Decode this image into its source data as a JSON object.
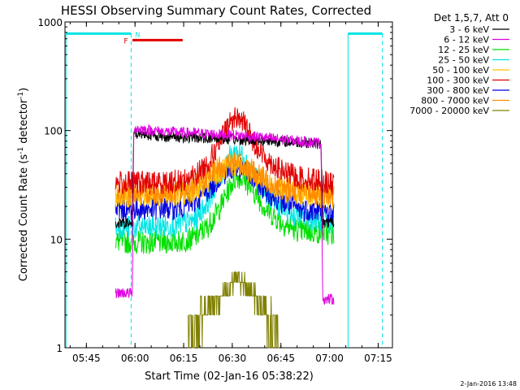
{
  "chart_data": {
    "type": "line",
    "title": "HESSI Observing Summary Count Rates, Corrected",
    "xlabel": "Start Time (02-Jan-16 05:38:22)",
    "ylabel": "Corrected Count Rate (s⁻¹ detector⁻¹)",
    "ylabel_parts": [
      "Corrected Count Rate (s",
      "-1",
      " detector",
      "-1",
      ")"
    ],
    "yscale": "log",
    "ylim": [
      1,
      1000
    ],
    "xlim_minutes_after_0538": [
      0,
      101
    ],
    "x_unit": "minutes after 05:38:22",
    "xticks": [
      {
        "label": "05:45",
        "min": 6.6
      },
      {
        "label": "06:00",
        "min": 21.6
      },
      {
        "label": "06:15",
        "min": 36.6
      },
      {
        "label": "06:30",
        "min": 51.6
      },
      {
        "label": "06:45",
        "min": 66.6
      },
      {
        "label": "07:00",
        "min": 81.6
      },
      {
        "label": "07:15",
        "min": 96.6
      }
    ],
    "yticks": [
      {
        "label": "1",
        "value": 1
      },
      {
        "label": "10",
        "value": 10
      },
      {
        "label": "100",
        "value": 100
      },
      {
        "label": "1000",
        "value": 1000
      }
    ],
    "legend_title": "Det 1,5,7, Att 0",
    "legend_position": "right",
    "grid": false,
    "night_flag": {
      "label": "N",
      "color": "#00e5e5",
      "level": 780,
      "intervals": [
        [
          0,
          20.4
        ],
        [
          87.3,
          97.9
        ]
      ],
      "boundaries": [
        0.3,
        20.4,
        87.3,
        97.9
      ]
    },
    "flare_flag": {
      "label": "F",
      "color": "#e00000",
      "level": 680,
      "interval": [
        20.8,
        36.3
      ]
    },
    "series": [
      {
        "name": "3 - 6 keV",
        "color": "#000000",
        "points": [
          [
            15.6,
            14
          ],
          [
            20.8,
            14
          ],
          [
            21.2,
            95
          ],
          [
            30,
            88
          ],
          [
            45,
            85
          ],
          [
            55,
            82
          ],
          [
            65,
            80
          ],
          [
            75,
            77
          ],
          [
            79,
            75
          ],
          [
            79.5,
            14
          ],
          [
            83,
            14
          ]
        ]
      },
      {
        "name": "6 - 12 keV",
        "color": "#e000e0",
        "points": [
          [
            15.6,
            3.2
          ],
          [
            20.8,
            3.2
          ],
          [
            21.2,
            105
          ],
          [
            30,
            98
          ],
          [
            45,
            93
          ],
          [
            52,
            91
          ],
          [
            60,
            87
          ],
          [
            70,
            81
          ],
          [
            79,
            77
          ],
          [
            79.5,
            2.8
          ],
          [
            83,
            2.8
          ]
        ]
      },
      {
        "name": "12 - 25 keV",
        "color": "#00e000",
        "points": [
          [
            15.6,
            9.5
          ],
          [
            25,
            9.3
          ],
          [
            35,
            9.5
          ],
          [
            40,
            10.3
          ],
          [
            44,
            13
          ],
          [
            48,
            20
          ],
          [
            51,
            31
          ],
          [
            53,
            38
          ],
          [
            55,
            36
          ],
          [
            58,
            28
          ],
          [
            62,
            19
          ],
          [
            67,
            14
          ],
          [
            72,
            12
          ],
          [
            79,
            11.5
          ],
          [
            83,
            11
          ]
        ]
      },
      {
        "name": "25 - 50 keV",
        "color": "#00e5e5",
        "points": [
          [
            15.6,
            13
          ],
          [
            25,
            12.8
          ],
          [
            35,
            13.5
          ],
          [
            40,
            15
          ],
          [
            44,
            22
          ],
          [
            48,
            38
          ],
          [
            51,
            58
          ],
          [
            53,
            65
          ],
          [
            55,
            58
          ],
          [
            58,
            40
          ],
          [
            62,
            27
          ],
          [
            67,
            19
          ],
          [
            72,
            16
          ],
          [
            79,
            15
          ],
          [
            83,
            14
          ]
        ]
      },
      {
        "name": "50 - 100 keV",
        "color": "#ffc000",
        "points": [
          [
            15.6,
            25
          ],
          [
            25,
            25
          ],
          [
            35,
            25.5
          ],
          [
            40,
            28
          ],
          [
            44,
            33
          ],
          [
            48,
            41
          ],
          [
            51,
            47
          ],
          [
            53,
            48
          ],
          [
            55,
            46
          ],
          [
            58,
            40
          ],
          [
            62,
            33
          ],
          [
            67,
            28
          ],
          [
            72,
            26
          ],
          [
            79,
            24
          ],
          [
            83,
            24
          ]
        ]
      },
      {
        "name": "100 - 300 keV",
        "color": "#e00000",
        "points": [
          [
            15.6,
            33
          ],
          [
            25,
            33
          ],
          [
            35,
            34
          ],
          [
            40,
            38
          ],
          [
            44,
            50
          ],
          [
            48,
            80
          ],
          [
            51,
            120
          ],
          [
            53,
            135
          ],
          [
            55,
            120
          ],
          [
            58,
            80
          ],
          [
            62,
            55
          ],
          [
            67,
            42
          ],
          [
            72,
            37
          ],
          [
            79,
            35
          ],
          [
            83,
            31
          ]
        ]
      },
      {
        "name": "300 - 800 keV",
        "color": "#0000e0",
        "points": [
          [
            15.6,
            19
          ],
          [
            25,
            19
          ],
          [
            35,
            19.5
          ],
          [
            40,
            22
          ],
          [
            44,
            28
          ],
          [
            48,
            38
          ],
          [
            51,
            44
          ],
          [
            53,
            45
          ],
          [
            55,
            43
          ],
          [
            58,
            36
          ],
          [
            62,
            28
          ],
          [
            67,
            22
          ],
          [
            72,
            19
          ],
          [
            79,
            18
          ],
          [
            83,
            17
          ]
        ]
      },
      {
        "name": "800 - 7000 keV",
        "color": "#ff8c00",
        "points": [
          [
            15.6,
            27
          ],
          [
            25,
            27
          ],
          [
            35,
            27.5
          ],
          [
            40,
            31
          ],
          [
            44,
            38
          ],
          [
            48,
            46
          ],
          [
            51,
            50
          ],
          [
            53,
            50
          ],
          [
            55,
            48
          ],
          [
            58,
            42
          ],
          [
            62,
            35
          ],
          [
            67,
            30
          ],
          [
            72,
            28
          ],
          [
            79,
            26
          ],
          [
            83,
            26
          ]
        ]
      },
      {
        "name": "7000 - 20000 keV",
        "color": "#808000",
        "points": [
          [
            38,
            1.4
          ],
          [
            42,
            2.0
          ],
          [
            46,
            2.7
          ],
          [
            50,
            3.4
          ],
          [
            52,
            4.0
          ],
          [
            53,
            4.3
          ],
          [
            55,
            4.0
          ],
          [
            57,
            3.4
          ],
          [
            60,
            2.7
          ],
          [
            63,
            2.0
          ],
          [
            65,
            1.6
          ],
          [
            66,
            1.3
          ]
        ]
      }
    ]
  },
  "timestamp": "2-Jan-2016 13:48"
}
